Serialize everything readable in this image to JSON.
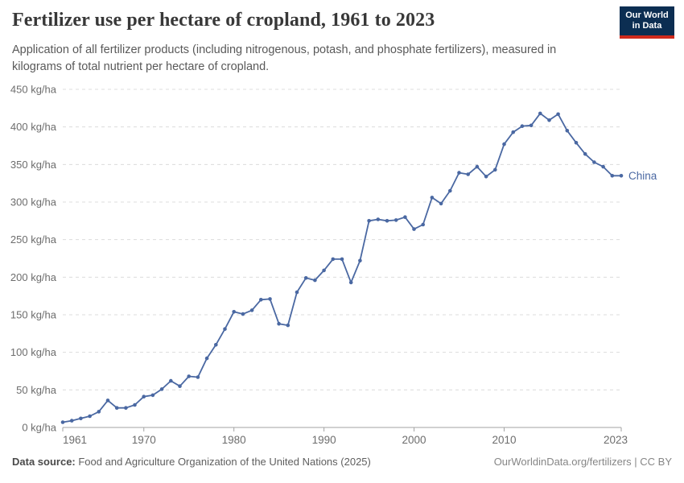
{
  "header": {
    "title": "Fertilizer use per hectare of cropland, 1961 to 2023",
    "subtitle": "Application of all fertilizer products (including nitrogenous, potash, and phosphate fertilizers), measured in kilograms of total nutrient per hectare of cropland.",
    "logo": {
      "line1": "Our World",
      "line2": "in Data"
    }
  },
  "footer": {
    "source_label": "Data source:",
    "source_text": " Food and Agriculture Organization of the United Nations (2025)",
    "credit": "OurWorldinData.org/fertilizers | CC BY"
  },
  "colors": {
    "line": "#4a68a2",
    "series_label": "#4a68a2",
    "gridline": "#dcdcdc",
    "axis": "#a3a3a3",
    "axis_text": "#6d6d6d",
    "logo_bg": "#0c2e52",
    "logo_red": "#cf2a1c"
  },
  "chart_data": {
    "type": "line",
    "title": "Fertilizer use per hectare of cropland, 1961 to 2023",
    "ylabel": "",
    "xlabel": "",
    "ylim": [
      0,
      450
    ],
    "yticks": [
      0,
      50,
      100,
      150,
      200,
      250,
      300,
      350,
      400,
      450
    ],
    "ytick_suffix": " kg/ha",
    "xticks": [
      1961,
      1970,
      1980,
      1990,
      2000,
      2010,
      2023
    ],
    "grid": "horizontal-dashed",
    "legend_position": "end-of-line",
    "series": [
      {
        "name": "China",
        "x": [
          1961,
          1962,
          1963,
          1964,
          1965,
          1966,
          1967,
          1968,
          1969,
          1970,
          1971,
          1972,
          1973,
          1974,
          1975,
          1976,
          1977,
          1978,
          1979,
          1980,
          1981,
          1982,
          1983,
          1984,
          1985,
          1986,
          1987,
          1988,
          1989,
          1990,
          1991,
          1992,
          1993,
          1994,
          1995,
          1996,
          1997,
          1998,
          1999,
          2000,
          2001,
          2002,
          2003,
          2004,
          2005,
          2006,
          2007,
          2008,
          2009,
          2010,
          2011,
          2012,
          2013,
          2014,
          2015,
          2016,
          2017,
          2018,
          2019,
          2020,
          2021,
          2022,
          2023
        ],
        "values": [
          7,
          9,
          12,
          15,
          21,
          36,
          26,
          26,
          30,
          41,
          43,
          51,
          62,
          55,
          68,
          67,
          92,
          110,
          131,
          154,
          151,
          156,
          170,
          171,
          138,
          136,
          180,
          199,
          196,
          209,
          224,
          224,
          193,
          222,
          275,
          277,
          275,
          276,
          280,
          264,
          270,
          306,
          298,
          315,
          339,
          337,
          347,
          334,
          343,
          377,
          393,
          401,
          402,
          418,
          409,
          417,
          395,
          379,
          364,
          353,
          347,
          335,
          335
        ]
      }
    ]
  }
}
